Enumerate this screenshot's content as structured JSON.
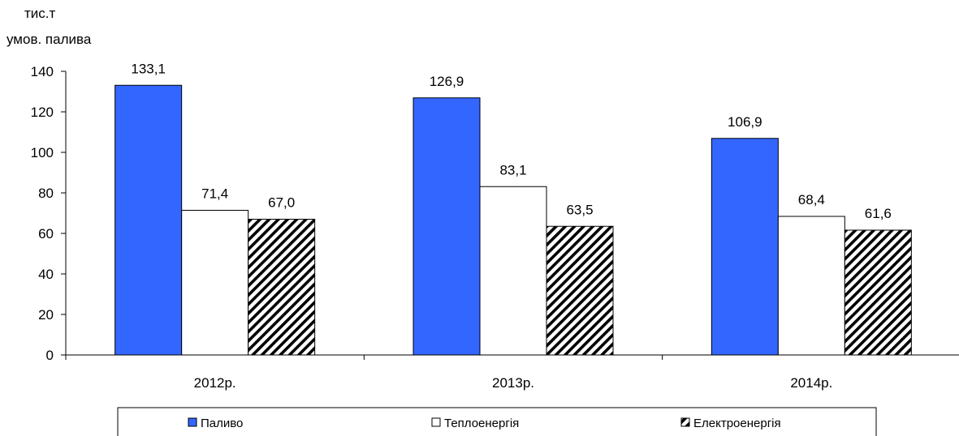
{
  "chart_data": {
    "type": "bar",
    "ylabel_line1": "тис.т",
    "ylabel_line2": "умов. палива",
    "categories": [
      "2012р.",
      "2013р.",
      "2014р."
    ],
    "ylim": [
      0,
      140
    ],
    "yticks": [
      0,
      20,
      40,
      60,
      80,
      100,
      120,
      140
    ],
    "grid": false,
    "legend_position": "bottom",
    "series": [
      {
        "name": "Паливо",
        "values": [
          133.1,
          126.9,
          106.9
        ],
        "labels": [
          "133,1",
          "126,9",
          "106,9"
        ],
        "fill": "#3366ff"
      },
      {
        "name": "Теплоенергія",
        "values": [
          71.4,
          83.1,
          68.4
        ],
        "labels": [
          "71,4",
          "83,1",
          "68,4"
        ],
        "fill": "#ffffff"
      },
      {
        "name": "Електроенергія",
        "values": [
          67.0,
          63.5,
          61.6
        ],
        "labels": [
          "67,0",
          "63,5",
          "61,6"
        ],
        "fill": "hatch"
      }
    ]
  }
}
